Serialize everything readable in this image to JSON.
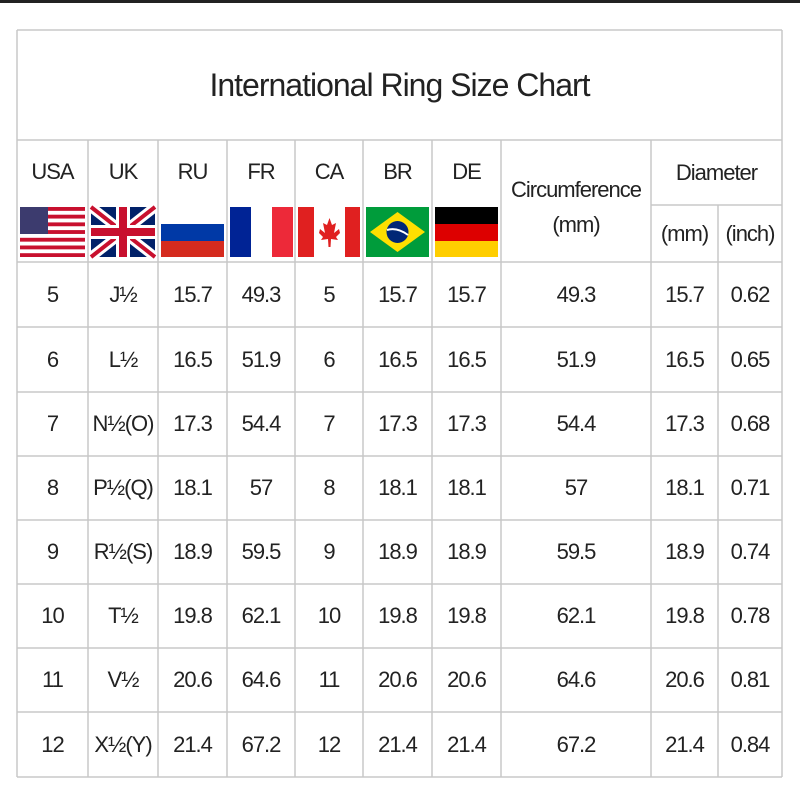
{
  "header": {
    "title": "International Ring Size Chart"
  },
  "table": {
    "columns": [
      "USA",
      "UK",
      "RU",
      "FR",
      "CA",
      "BR",
      "DE"
    ],
    "circumference": {
      "label": "Circumference",
      "unit": "(mm)"
    },
    "diameter": {
      "label": "Diameter",
      "units": [
        "(mm)",
        "(inch)"
      ]
    },
    "rows": [
      [
        5,
        "J½",
        15.7,
        49.3,
        5,
        15.7,
        15.7,
        49.3,
        15.7,
        0.62
      ],
      [
        6,
        "L½",
        16.5,
        51.9,
        6,
        16.5,
        16.5,
        51.9,
        16.5,
        0.65
      ],
      [
        7,
        "N½(O)",
        17.3,
        54.4,
        7,
        17.3,
        17.3,
        54.4,
        17.3,
        0.68
      ],
      [
        8,
        "P½(Q)",
        18.1,
        57,
        8,
        18.1,
        18.1,
        57,
        18.1,
        0.71
      ],
      [
        9,
        "R½(S)",
        18.9,
        59.5,
        9,
        18.9,
        18.9,
        59.5,
        18.9,
        0.74
      ],
      [
        10,
        "T½",
        19.8,
        62.1,
        10,
        19.8,
        19.8,
        62.1,
        19.8,
        0.78
      ],
      [
        11,
        "V½",
        20.6,
        64.6,
        11,
        20.6,
        20.6,
        64.6,
        20.6,
        0.81
      ],
      [
        12,
        "X½(Y)",
        21.4,
        67.2,
        12,
        21.4,
        21.4,
        67.2,
        21.4,
        0.84
      ]
    ]
  }
}
